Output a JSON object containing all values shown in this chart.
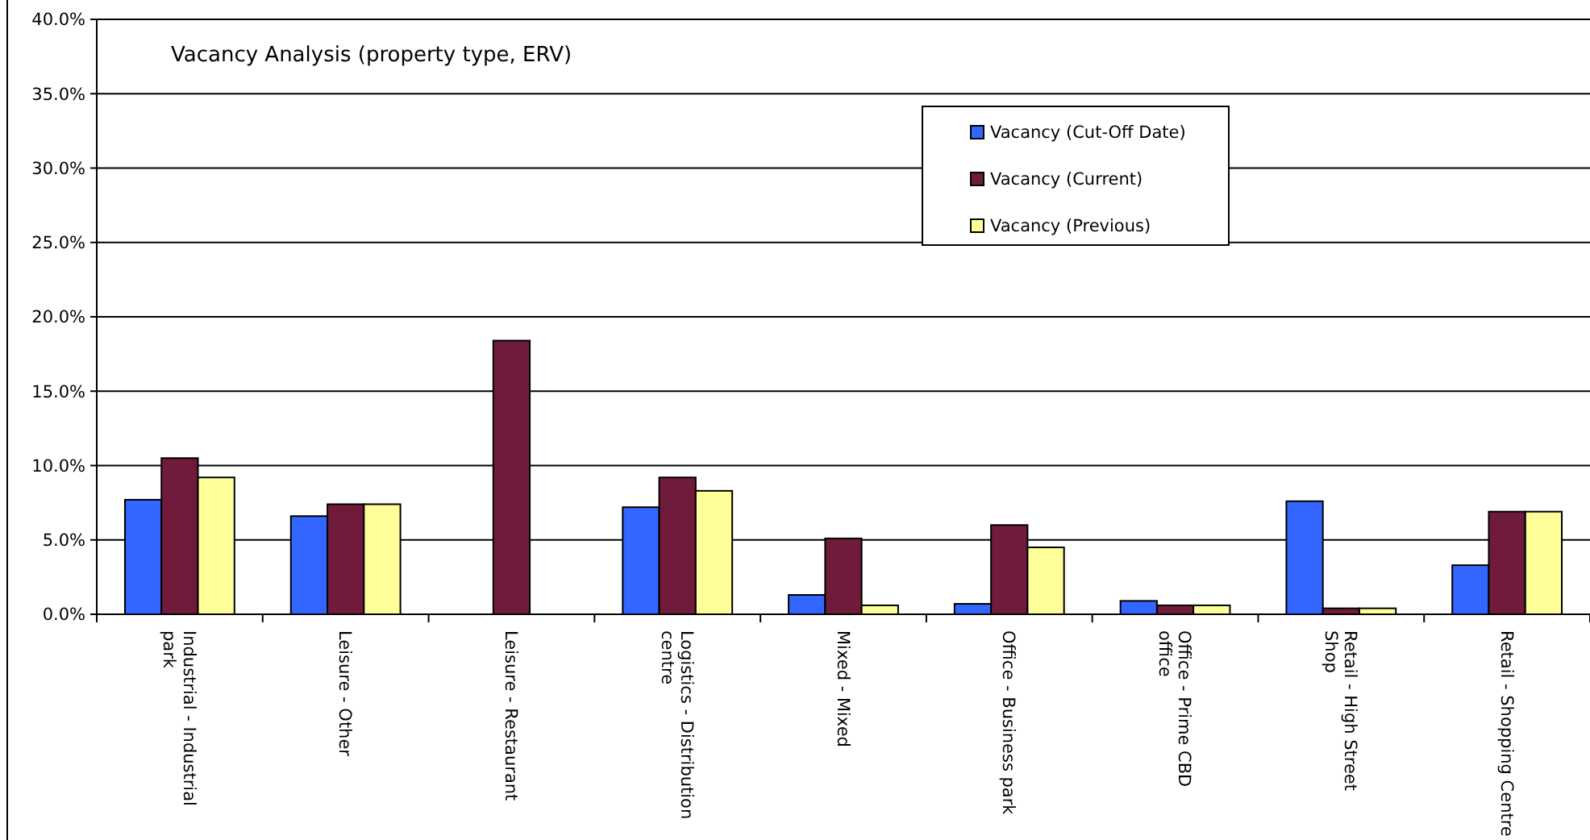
{
  "chart_data": {
    "type": "bar",
    "title": "Vacancy Analysis (property type, ERV)",
    "categories": [
      "Industrial - Industrial park",
      "Leisure - Other",
      "Leisure - Restaurant",
      "Logistics - Distribution centre",
      "Mixed - Mixed",
      "Office - Business park",
      "Office - Prime CBD office",
      "Retail - High Street Shop",
      "Retail - Shopping Centre"
    ],
    "series": [
      {
        "name": "Vacancy (Cut-Off Date)",
        "color": "#3366ff",
        "values": [
          7.7,
          6.6,
          0,
          7.2,
          1.3,
          0.7,
          0.9,
          7.6,
          3.3
        ]
      },
      {
        "name": "Vacancy (Current)",
        "color": "#701a3c",
        "values": [
          10.5,
          7.4,
          18.4,
          9.2,
          5.1,
          6.0,
          0.6,
          0.4,
          6.9
        ]
      },
      {
        "name": "Vacancy (Previous)",
        "color": "#ffff99",
        "values": [
          9.2,
          7.4,
          0,
          8.3,
          0.6,
          4.5,
          0.6,
          0.4,
          6.9
        ]
      }
    ],
    "ylim": [
      0,
      40
    ],
    "yticks": [
      {
        "value": 0,
        "label": "0.0%"
      },
      {
        "value": 5,
        "label": "5.0%"
      },
      {
        "value": 10,
        "label": "10.0%"
      },
      {
        "value": 15,
        "label": "15.0%"
      },
      {
        "value": 20,
        "label": "20.0%"
      },
      {
        "value": 25,
        "label": "25.0%"
      },
      {
        "value": 30,
        "label": "30.0%"
      },
      {
        "value": 35,
        "label": "35.0%"
      },
      {
        "value": 40,
        "label": "40.0%"
      }
    ],
    "grid": "y",
    "legend": "top"
  }
}
